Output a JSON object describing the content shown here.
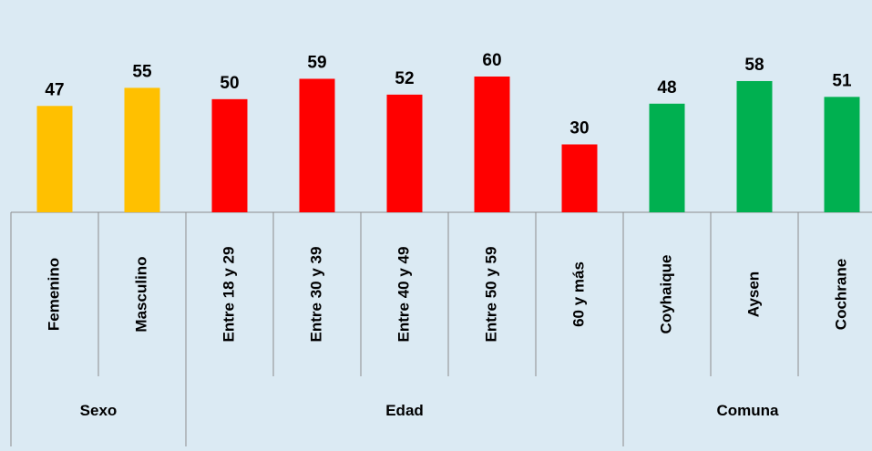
{
  "chart_data": {
    "type": "bar",
    "ylim": [
      0,
      60
    ],
    "groups": [
      {
        "name": "Sexo",
        "color": "#ffc000",
        "categories": [
          "Femenino",
          "Masculino"
        ],
        "values": [
          47,
          55
        ]
      },
      {
        "name": "Edad",
        "color": "#ff0000",
        "categories": [
          "Entre 18 y 29",
          "Entre 30 y 39",
          "Entre 40 y 49",
          "Entre 50 y 59",
          "60 y más"
        ],
        "values": [
          50,
          59,
          52,
          60,
          30
        ]
      },
      {
        "name": "Comuna",
        "color": "#00b050",
        "categories": [
          "Coyhaique",
          "Aysen",
          "Cochrane"
        ],
        "values": [
          48,
          58,
          51
        ]
      }
    ]
  }
}
